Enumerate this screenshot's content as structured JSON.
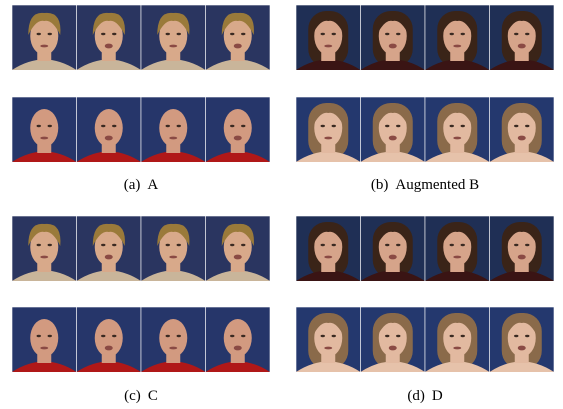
{
  "subfigures": [
    {
      "label": "(a)",
      "caption": "A"
    },
    {
      "label": "(b)",
      "caption": "Augmented B"
    },
    {
      "label": "(c)",
      "caption": "C"
    },
    {
      "label": "(d)",
      "caption": "D"
    }
  ]
}
